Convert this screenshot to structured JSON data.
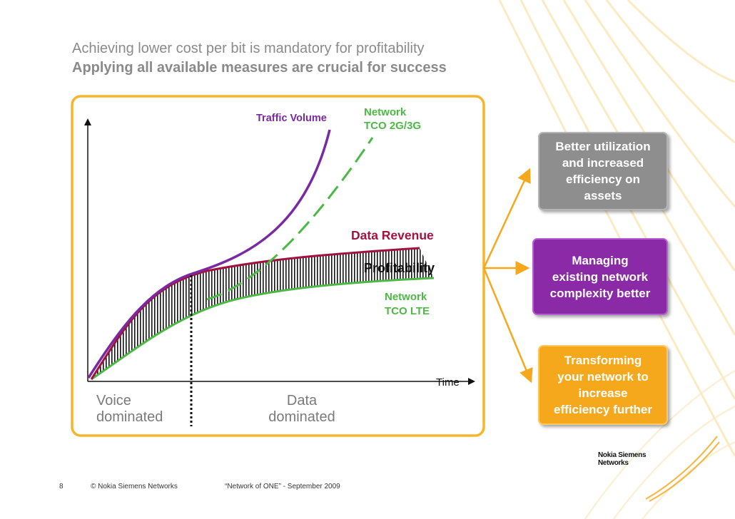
{
  "slide": {
    "title": "Achieving lower cost per bit is mandatory for profitability",
    "subtitle": "Applying all available measures are crucial for success"
  },
  "diagram": {
    "labels": {
      "traffic_volume": "Traffic Volume",
      "network_tco_2g3g": [
        "Network",
        "TCO 2G/3G"
      ],
      "data_revenue": "Data Revenue",
      "profitability": "Profitability",
      "network_tco_lte": [
        "Network",
        "TCO LTE"
      ],
      "time": "Time",
      "voice_dominated": [
        "Voice",
        "dominated"
      ],
      "data_dominated": [
        "Data",
        "dominated"
      ]
    },
    "colors": {
      "traffic_volume": "#7a2aa0",
      "data_revenue": "#a1123f",
      "network_tco": "#4cb944",
      "frame": "#f6b52b",
      "arrow": "#f6a81d"
    }
  },
  "measures": [
    {
      "text": "Better utilization\nand increased\nefficiency on\nassets",
      "color": "#8e8e8e"
    },
    {
      "text": "Managing\nexisting network\ncomplexity better",
      "color": "#8a2aa7"
    },
    {
      "text": "Transforming\nyour network to\nincrease\nefficiency further",
      "color": "#f6a81d"
    }
  ],
  "footer": {
    "page_number": "8",
    "copyright": "© Nokia Siemens Networks",
    "event": "“Network of ONE”  - September  2009"
  },
  "logo": {
    "line1": "Nokia Siemens",
    "line2": "Networks"
  }
}
